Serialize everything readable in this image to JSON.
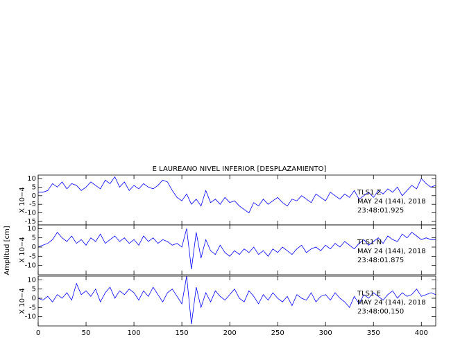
{
  "chart_data": {
    "type": "line",
    "title": "E LAUREANO NIVEL INFERIOR [DESPLAZAMIENTO]",
    "ylabel": "Amplitud [cm]",
    "color": "#0000ff",
    "xlim": [
      0,
      415
    ],
    "xticks": [
      0,
      50,
      100,
      150,
      200,
      250,
      300,
      350,
      400
    ],
    "x": [
      0,
      5,
      10,
      15,
      20,
      25,
      30,
      35,
      40,
      45,
      50,
      55,
      60,
      65,
      70,
      75,
      80,
      85,
      90,
      95,
      100,
      105,
      110,
      115,
      120,
      125,
      130,
      135,
      140,
      145,
      150,
      155,
      160,
      165,
      170,
      175,
      180,
      185,
      190,
      195,
      200,
      205,
      210,
      215,
      220,
      225,
      230,
      235,
      240,
      245,
      250,
      255,
      260,
      265,
      270,
      275,
      280,
      285,
      290,
      295,
      300,
      305,
      310,
      315,
      320,
      325,
      330,
      335,
      340,
      345,
      350,
      355,
      360,
      365,
      370,
      375,
      380,
      385,
      390,
      395,
      400,
      405,
      410,
      415
    ],
    "panels": [
      {
        "scale": "X 10−4",
        "ylim": [
          -17,
          12
        ],
        "yticks": [
          10,
          5,
          0,
          -5,
          -10,
          -15
        ],
        "annotations": [
          "TLS1  Z",
          "MAY 24 (144), 2018",
          "23:48:01.925"
        ],
        "values": [
          2,
          2,
          3,
          7,
          5,
          8,
          4,
          7,
          6,
          3,
          5,
          8,
          6,
          4,
          9,
          7,
          11,
          5,
          8,
          3,
          6,
          4,
          7,
          5,
          4,
          6,
          9,
          8,
          3,
          -1,
          -3,
          1,
          -5,
          -2,
          -6,
          3,
          -4,
          -2,
          -5,
          -1,
          -4,
          -3,
          -6,
          -8,
          -10,
          -4,
          -6,
          -2,
          -5,
          -3,
          -1,
          -4,
          -6,
          -2,
          -3,
          0,
          -2,
          -4,
          1,
          -1,
          -3,
          2,
          0,
          -2,
          1,
          -1,
          3,
          -2,
          0,
          2,
          -1,
          3,
          1,
          4,
          2,
          5,
          0,
          3,
          6,
          4,
          10,
          7,
          5,
          6
        ]
      },
      {
        "scale": "X 10−4",
        "ylim": [
          -15,
          12
        ],
        "yticks": [
          10,
          5,
          0,
          -5,
          -10
        ],
        "annotations": [
          "TLS1  N",
          "MAY 24 (144), 2018",
          "23:48:01.875"
        ],
        "values": [
          0,
          1,
          2,
          4,
          8,
          5,
          3,
          6,
          2,
          4,
          1,
          5,
          3,
          7,
          2,
          4,
          6,
          3,
          5,
          2,
          4,
          1,
          6,
          3,
          5,
          2,
          4,
          3,
          1,
          2,
          0,
          10,
          -12,
          8,
          -6,
          4,
          -2,
          -4,
          1,
          -3,
          -5,
          -2,
          -4,
          -1,
          -3,
          0,
          -4,
          -2,
          -5,
          -1,
          -3,
          0,
          -2,
          -4,
          -1,
          1,
          -3,
          -1,
          0,
          -2,
          1,
          -1,
          2,
          0,
          3,
          1,
          -1,
          2,
          4,
          1,
          3,
          5,
          2,
          6,
          4,
          3,
          7,
          5,
          8,
          6,
          4,
          5,
          4,
          4
        ]
      },
      {
        "scale": "X 10−4",
        "ylim": [
          -15,
          12
        ],
        "yticks": [
          10,
          5,
          0,
          -5,
          -10
        ],
        "annotations": [
          "TLS1  E",
          "MAY 24 (144), 2018",
          "23:48:00.150"
        ],
        "values": [
          0,
          -1,
          1,
          -2,
          2,
          0,
          3,
          -1,
          8,
          2,
          4,
          1,
          5,
          -2,
          3,
          6,
          0,
          4,
          2,
          5,
          3,
          -1,
          4,
          1,
          6,
          2,
          -2,
          3,
          5,
          1,
          -3,
          12,
          -14,
          6,
          -5,
          3,
          -2,
          4,
          1,
          -1,
          2,
          5,
          0,
          -2,
          4,
          1,
          -3,
          2,
          -1,
          3,
          0,
          -2,
          1,
          -4,
          2,
          0,
          -1,
          3,
          -2,
          1,
          2,
          -1,
          3,
          0,
          -2,
          -5,
          1,
          -3,
          2,
          0,
          3,
          1,
          -1,
          2,
          4,
          0,
          3,
          1,
          2,
          5,
          1,
          2,
          3,
          2
        ]
      }
    ]
  }
}
